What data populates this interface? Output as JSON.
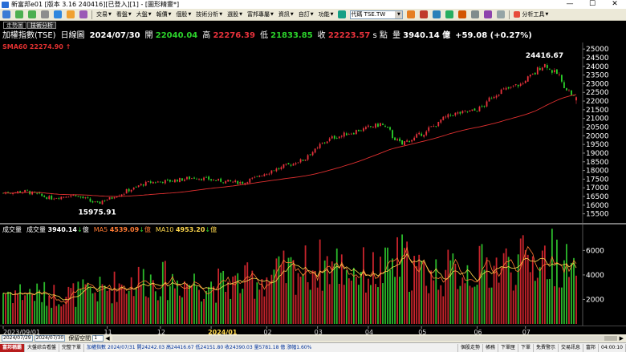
{
  "window": {
    "title": "新富邦e01 [版本 3.16 240416][已登入][1] - [圖形精靈*]",
    "controls": [
      "—",
      "☐",
      "✕"
    ]
  },
  "toolbar": {
    "menus": [
      {
        "label": "交易"
      },
      {
        "label": "看盤"
      },
      {
        "label": "大盤"
      },
      {
        "label": "報價"
      },
      {
        "label": "個股"
      },
      {
        "label": "技術分析"
      },
      {
        "label": "選股"
      },
      {
        "label": "富邦專屬"
      },
      {
        "label": "資訊"
      },
      {
        "label": "自訂"
      },
      {
        "label": "功能"
      }
    ],
    "code_value": "代碼 TSE.TW",
    "right_menu": "分析工具"
  },
  "quote": {
    "tabs": [
      {
        "label": "走勢圖"
      },
      {
        "label": "技術分析"
      }
    ],
    "name": "加權指數(TSE)",
    "period": "日線圖",
    "date": "2024/07/30",
    "open_label": "開",
    "open": "22040.04",
    "high_label": "高",
    "high": "22276.39",
    "low_label": "低",
    "low": "21833.85",
    "close_label": "收",
    "close": "22223.57",
    "close_unit": "s 點",
    "volume_label": "量",
    "volume": "3940.14 億",
    "change": "+59.08 (+0.27%)",
    "colors": {
      "up": "#e8323c",
      "down": "#2bd12b",
      "neutral": "#ffffff",
      "sma": "#e03030"
    }
  },
  "price_pane": {
    "sma_label": "SMA60 22274.90 ↑",
    "max_label": "24416.67",
    "min_label": "15975.91"
  },
  "volume_pane": {
    "label": "成交量",
    "vol_label": "成交量",
    "vol_value": "3940.14",
    "vol_unit": "億",
    "ma5_label": "MA5",
    "ma5_value": "4539.09",
    "ma5_unit": "億",
    "ma10_label": "MA10",
    "ma10_value": "4953.20",
    "ma10_unit": "億",
    "colors": {
      "ma5": "#ff7a33",
      "ma10": "#ffd84d"
    }
  },
  "scroller": {
    "start_value": "2024/07/29",
    "end_value": "2024/07/30",
    "label": "保留空間",
    "space_value": "1"
  },
  "statusbar": {
    "items": [
      {
        "label": "富邦稱霸"
      },
      {
        "label": "大盤綜合看盤"
      },
      {
        "label": "完整下單"
      },
      {
        "label": "加權指數 2024/07/31 開24242.03 高24416.67 低24151.80 收24390.03 量5781.18 億 漲幅1.60%"
      },
      {
        "label": "個股走勢"
      },
      {
        "label": "帳務"
      },
      {
        "label": "下單匣"
      },
      {
        "label": "下單"
      },
      {
        "label": "免費警示"
      },
      {
        "label": "交易訊息"
      },
      {
        "label": "富邦"
      },
      {
        "label": "04:00:10"
      }
    ]
  },
  "chart_data": {
    "type": "candlestick",
    "title": "加權指數(TSE) 日線圖",
    "x_tick_labels": [
      "2023/09/01",
      "11",
      "12",
      "2024/01",
      "02",
      "03",
      "04",
      "05",
      "06",
      "07"
    ],
    "y_tick_labels": [
      "25000",
      "24500",
      "24000",
      "23500",
      "23000",
      "22500",
      "22000",
      "21500",
      "21000",
      "20500",
      "20000",
      "19500",
      "19000",
      "18500",
      "18000",
      "17500",
      "17000",
      "16500",
      "16000",
      "15500"
    ],
    "ylim": [
      15300,
      25100
    ],
    "volume_tick_labels": [
      "6000",
      "4000",
      "2000"
    ],
    "volume_ylim": [
      0,
      7200
    ],
    "anchors": [
      {
        "date": "2023/09/01",
        "close": 16700,
        "volume": 2600
      },
      {
        "date": "2023/09/15",
        "close": 16800,
        "volume": 2500
      },
      {
        "date": "2023/09/29",
        "close": 16400,
        "volume": 2300
      },
      {
        "date": "2023/10/13",
        "close": 16600,
        "volume": 2400
      },
      {
        "date": "2023/10/26",
        "close": 16100,
        "volume": 2600
      },
      {
        "date": "2023/11/10",
        "close": 16700,
        "volume": 3200
      },
      {
        "date": "2023/11/24",
        "close": 17300,
        "volume": 3600
      },
      {
        "date": "2023/12/08",
        "close": 17400,
        "volume": 3400
      },
      {
        "date": "2023/12/22",
        "close": 17600,
        "volume": 3300
      },
      {
        "date": "2024/01/05",
        "close": 17400,
        "volume": 3100
      },
      {
        "date": "2024/01/19",
        "close": 17300,
        "volume": 3300
      },
      {
        "date": "2024/02/02",
        "close": 17900,
        "volume": 3700
      },
      {
        "date": "2024/02/22",
        "close": 18600,
        "volume": 4400
      },
      {
        "date": "2024/03/08",
        "close": 19800,
        "volume": 4800
      },
      {
        "date": "2024/03/22",
        "close": 20200,
        "volume": 4300
      },
      {
        "date": "2024/04/08",
        "close": 20700,
        "volume": 4100
      },
      {
        "date": "2024/04/19",
        "close": 19500,
        "volume": 5100
      },
      {
        "date": "2024/05/03",
        "close": 20200,
        "volume": 3900
      },
      {
        "date": "2024/05/17",
        "close": 21200,
        "volume": 4100
      },
      {
        "date": "2024/06/03",
        "close": 21500,
        "volume": 4400
      },
      {
        "date": "2024/06/14",
        "close": 22500,
        "volume": 4600
      },
      {
        "date": "2024/06/28",
        "close": 23000,
        "volume": 4900
      },
      {
        "date": "2024/07/11",
        "close": 24100,
        "volume": 5200
      },
      {
        "date": "2024/07/19",
        "close": 23500,
        "volume": 5400
      },
      {
        "date": "2024/07/26",
        "close": 22400,
        "volume": 4200
      },
      {
        "date": "2024/07/30",
        "close": 22223.57,
        "volume": 3940.14
      }
    ],
    "last_candle": {
      "date": "2024/07/30",
      "open": 22040.04,
      "high": 22276.39,
      "low": 21833.85,
      "close": 22223.57,
      "volume": 3940.14
    },
    "max_point": {
      "date": "2024/07/11",
      "value": 24416.67
    },
    "min_point": {
      "date": "2023/10/26",
      "value": 15975.91
    },
    "series": [
      {
        "name": "SMA60",
        "last": 22274.9
      },
      {
        "name": "MA5",
        "last": 4539.09
      },
      {
        "name": "MA10",
        "last": 4953.2
      }
    ]
  }
}
